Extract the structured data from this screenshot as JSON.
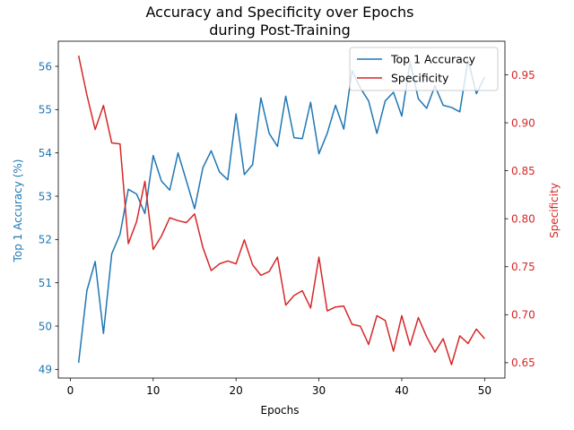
{
  "chart_data": {
    "type": "line",
    "title_line1": "Accuracy and Specificity over Epochs",
    "title_line2": "during Post-Training",
    "xlabel": "Epochs",
    "ylabel_left": "Top 1 Accuracy (%)",
    "ylabel_right": "Specificity",
    "xlim": [
      -1.45,
      52.45
    ],
    "ylim_left": [
      48.8,
      56.58
    ],
    "ylim_right": [
      0.634,
      0.985
    ],
    "xticks": [
      "0",
      "10",
      "20",
      "30",
      "40",
      "50"
    ],
    "yticks_left": [
      "49",
      "50",
      "51",
      "52",
      "53",
      "54",
      "55",
      "56"
    ],
    "yticks_right": [
      "0.65",
      "0.70",
      "0.75",
      "0.80",
      "0.85",
      "0.90",
      "0.95"
    ],
    "grid": false,
    "legend_position": "top-right",
    "colors": {
      "accuracy": "#1f77b4",
      "specificity": "#d62728",
      "axis": "#000000",
      "legend_border": "#cccccc"
    },
    "x": [
      1,
      2,
      3,
      4,
      5,
      6,
      7,
      8,
      9,
      10,
      11,
      12,
      13,
      14,
      15,
      16,
      17,
      18,
      19,
      20,
      21,
      22,
      23,
      24,
      25,
      26,
      27,
      28,
      29,
      30,
      31,
      32,
      33,
      34,
      35,
      36,
      37,
      38,
      39,
      40,
      41,
      42,
      43,
      44,
      45,
      46,
      47,
      48,
      49,
      50
    ],
    "series": [
      {
        "name": "Top 1 Accuracy",
        "axis": "left",
        "values": [
          49.15,
          50.82,
          51.49,
          49.83,
          51.67,
          52.12,
          53.16,
          53.05,
          52.6,
          53.94,
          53.35,
          53.14,
          54.0,
          53.36,
          52.71,
          53.66,
          54.05,
          53.56,
          53.38,
          54.9,
          53.5,
          53.73,
          55.27,
          54.45,
          54.15,
          55.31,
          54.35,
          54.33,
          55.17,
          53.98,
          54.45,
          55.1,
          54.55,
          55.9,
          55.5,
          55.2,
          54.45,
          55.2,
          55.4,
          54.85,
          56.1,
          55.25,
          55.03,
          55.55,
          55.1,
          55.05,
          54.95,
          56.15,
          55.37,
          55.75
        ]
      },
      {
        "name": "Specificity",
        "axis": "right",
        "values": [
          0.97,
          0.929,
          0.893,
          0.918,
          0.879,
          0.878,
          0.774,
          0.797,
          0.839,
          0.768,
          0.782,
          0.801,
          0.798,
          0.796,
          0.805,
          0.77,
          0.746,
          0.753,
          0.756,
          0.753,
          0.778,
          0.752,
          0.741,
          0.745,
          0.76,
          0.71,
          0.72,
          0.725,
          0.707,
          0.76,
          0.704,
          0.708,
          0.709,
          0.69,
          0.688,
          0.669,
          0.699,
          0.694,
          0.662,
          0.699,
          0.668,
          0.697,
          0.677,
          0.661,
          0.675,
          0.648,
          0.678,
          0.67,
          0.685,
          0.675
        ]
      }
    ]
  }
}
